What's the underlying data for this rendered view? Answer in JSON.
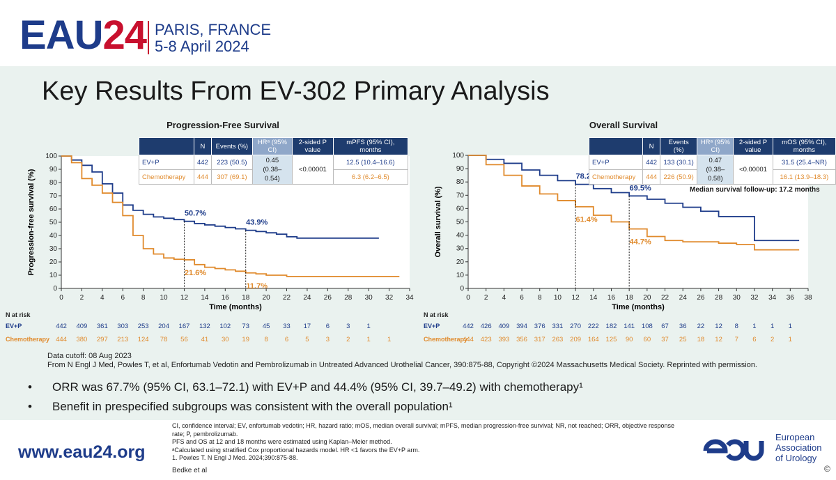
{
  "header": {
    "logo_eau": "EAU",
    "logo_year": "24",
    "city": "PARIS, FRANCE",
    "dates": "5-8 April 2024"
  },
  "title": "Key Results From EV-302 Primary Analysis",
  "pfs_table": {
    "headers": [
      "N",
      "Events (%)",
      "HRᵃ (95% CI)",
      "2-sided P value",
      "mPFS (95% CI), months"
    ],
    "rows": [
      {
        "arm": "EV+P",
        "n": "442",
        "events": "223 (50.5)",
        "median": "12.5 (10.4–16.6)"
      },
      {
        "arm": "Chemotherapy",
        "n": "444",
        "events": "307 (69.1)",
        "median": "6.3 (6.2–6.5)"
      }
    ],
    "hr": "0.45",
    "hr_ci": "(0.38–0.54)",
    "p": "<0.00001"
  },
  "os_table": {
    "headers": [
      "N",
      "Events (%)",
      "HRᵃ (95% CI)",
      "2-sided P value",
      "mOS (95% CI), months"
    ],
    "rows": [
      {
        "arm": "EV+P",
        "n": "442",
        "events": "133 (30.1)",
        "median": "31.5 (25.4–NR)"
      },
      {
        "arm": "Chemotherapy",
        "n": "444",
        "events": "226 (50.9)",
        "median": "16.1 (13.9–18.3)"
      }
    ],
    "hr": "0.47",
    "hr_ci": "(0.38–0.58)",
    "p": "<0.00001"
  },
  "median_followup": "Median survival follow-up: 17.2 months",
  "data_cutoff": "Data cutoff: 08 Aug 2023",
  "source": "From N Engl J Med, Powles T, et al, Enfortumab Vedotin and Pembrolizumab in Untreated Advanced Urothelial Cancer, 390:875-88, Copyright ©2024 Massachusetts Medical Society. Reprinted with permission.",
  "bullets": [
    "ORR was 67.7% (95% CI, 63.1–72.1) with EV+P and 44.4% (95% CI, 39.7–49.2) with chemotherapy¹",
    "Benefit in prespecified subgroups was consistent with the overall population¹"
  ],
  "footer": {
    "url": "www.eau24.org",
    "notes": [
      "CI, confidence interval; EV, enfortumab vedotin; HR, hazard ratio; mOS, median overall survival; mPFS, median progression-free survival; NR, not reached; ORR, objective response rate; P, pembrolizumab.",
      "PFS and OS at 12 and 18 months were estimated using Kaplan–Meier method.",
      "ᵃCalculated using stratified Cox proportional hazards model. HR <1 favors the EV+P arm.",
      "1. Powles T. N Engl J Med. 2024;390:875-88."
    ],
    "author": "Bedke et al",
    "org_name": [
      "European",
      "Association",
      "of Urology"
    ],
    "copyright": "©"
  },
  "colors": {
    "ev": "#1e3c8a",
    "chemo": "#e08a2c",
    "dark": "#1e3c6e"
  },
  "chart_data": [
    {
      "type": "line",
      "title": "Progression-Free Survival",
      "xlabel": "Time (months)",
      "ylabel": "Progression-free survival (%)",
      "xlim": [
        0,
        34
      ],
      "ylim": [
        0,
        100
      ],
      "xticks": [
        0,
        2,
        4,
        6,
        8,
        10,
        12,
        14,
        16,
        18,
        20,
        22,
        24,
        26,
        28,
        30,
        32,
        34
      ],
      "yticks": [
        0,
        10,
        20,
        30,
        40,
        50,
        60,
        70,
        80,
        90,
        100
      ],
      "vlines": [
        12,
        18
      ],
      "series": [
        {
          "name": "EV+P",
          "color": "#1e3c8a",
          "x": [
            0,
            1,
            2,
            3,
            4,
            5,
            6,
            7,
            8,
            9,
            10,
            11,
            12,
            13,
            14,
            15,
            16,
            17,
            18,
            19,
            20,
            21,
            22,
            23,
            24,
            25,
            26,
            28,
            30,
            31
          ],
          "y": [
            100,
            97,
            93,
            88,
            79,
            72,
            63,
            59,
            56,
            54,
            53,
            52,
            50.7,
            49,
            48,
            47,
            46,
            45,
            43.9,
            43,
            42,
            41,
            39,
            38,
            38,
            38,
            38,
            38,
            38,
            38
          ]
        },
        {
          "name": "Chemotherapy",
          "color": "#e08a2c",
          "x": [
            0,
            1,
            2,
            3,
            4,
            5,
            6,
            7,
            8,
            9,
            10,
            11,
            12,
            13,
            14,
            15,
            16,
            17,
            18,
            19,
            20,
            22,
            24,
            26,
            28,
            30,
            32,
            33
          ],
          "y": [
            100,
            95,
            83,
            78,
            72,
            65,
            55,
            40,
            30,
            26,
            23,
            22,
            21.6,
            18,
            16,
            15,
            14,
            13,
            11.7,
            11,
            10,
            9,
            9,
            9,
            9,
            9,
            9,
            9
          ]
        }
      ],
      "annotations": [
        {
          "text": "50.7%",
          "x": 12,
          "y": 50.7,
          "series": "EV+P"
        },
        {
          "text": "43.9%",
          "x": 18,
          "y": 43.9,
          "series": "EV+P"
        },
        {
          "text": "21.6%",
          "x": 12,
          "y": 21.6,
          "series": "Chemotherapy"
        },
        {
          "text": "11.7%",
          "x": 18,
          "y": 11.7,
          "series": "Chemotherapy"
        }
      ],
      "at_risk": {
        "label": "N at risk",
        "times": [
          0,
          2,
          4,
          6,
          8,
          10,
          12,
          14,
          16,
          18,
          20,
          22,
          24,
          26,
          28,
          30,
          32
        ],
        "rows": [
          {
            "name": "EV+P",
            "values": [
              "442",
              "409",
              "361",
              "303",
              "253",
              "204",
              "167",
              "132",
              "102",
              "73",
              "45",
              "33",
              "17",
              "6",
              "3",
              "1"
            ]
          },
          {
            "name": "Chemotherapy",
            "values": [
              "444",
              "380",
              "297",
              "213",
              "124",
              "78",
              "56",
              "41",
              "30",
              "19",
              "8",
              "6",
              "5",
              "3",
              "2",
              "1",
              "1"
            ]
          }
        ]
      }
    },
    {
      "type": "line",
      "title": "Overall Survival",
      "xlabel": "Time (months)",
      "ylabel": "Overall survival (%)",
      "xlim": [
        0,
        38
      ],
      "ylim": [
        0,
        100
      ],
      "xticks": [
        0,
        2,
        4,
        6,
        8,
        10,
        12,
        14,
        16,
        18,
        20,
        22,
        24,
        26,
        28,
        30,
        32,
        34,
        36,
        38
      ],
      "yticks": [
        0,
        10,
        20,
        30,
        40,
        50,
        60,
        70,
        80,
        90,
        100
      ],
      "vlines": [
        12,
        18
      ],
      "series": [
        {
          "name": "EV+P",
          "color": "#1e3c8a",
          "x": [
            0,
            2,
            4,
            6,
            8,
            10,
            12,
            14,
            16,
            18,
            20,
            22,
            24,
            26,
            28,
            30,
            31.5,
            32,
            34,
            36,
            37
          ],
          "y": [
            100,
            97,
            94,
            89,
            85,
            81,
            78.2,
            75,
            72,
            69.5,
            67,
            64,
            61,
            58,
            54,
            54,
            54,
            36,
            36,
            36,
            36
          ]
        },
        {
          "name": "Chemotherapy",
          "color": "#e08a2c",
          "x": [
            0,
            2,
            4,
            6,
            8,
            10,
            12,
            14,
            16,
            18,
            20,
            22,
            24,
            26,
            28,
            30,
            32,
            34,
            36,
            37
          ],
          "y": [
            100,
            93,
            85,
            77,
            71,
            66,
            61.4,
            55,
            50,
            44.7,
            39,
            36,
            35,
            35,
            34,
            33,
            29,
            29,
            29,
            29
          ]
        }
      ],
      "annotations": [
        {
          "text": "78.2%",
          "x": 12,
          "y": 78.2,
          "series": "EV+P"
        },
        {
          "text": "69.5%",
          "x": 18,
          "y": 69.5,
          "series": "EV+P"
        },
        {
          "text": "61.4%",
          "x": 12,
          "y": 61.4,
          "series": "Chemotherapy"
        },
        {
          "text": "44.7%",
          "x": 18,
          "y": 44.7,
          "series": "Chemotherapy"
        }
      ],
      "at_risk": {
        "label": "N at risk",
        "times": [
          0,
          2,
          4,
          6,
          8,
          10,
          12,
          14,
          16,
          18,
          20,
          22,
          24,
          26,
          28,
          30,
          32,
          34,
          36
        ],
        "rows": [
          {
            "name": "EV+P",
            "values": [
              "442",
              "426",
              "409",
              "394",
              "376",
              "331",
              "270",
              "222",
              "182",
              "141",
              "108",
              "67",
              "36",
              "22",
              "12",
              "8",
              "1",
              "1",
              "1"
            ]
          },
          {
            "name": "Chemotherapy",
            "values": [
              "444",
              "423",
              "393",
              "356",
              "317",
              "263",
              "209",
              "164",
              "125",
              "90",
              "60",
              "37",
              "25",
              "18",
              "12",
              "7",
              "6",
              "2",
              "1"
            ]
          }
        ]
      }
    }
  ]
}
